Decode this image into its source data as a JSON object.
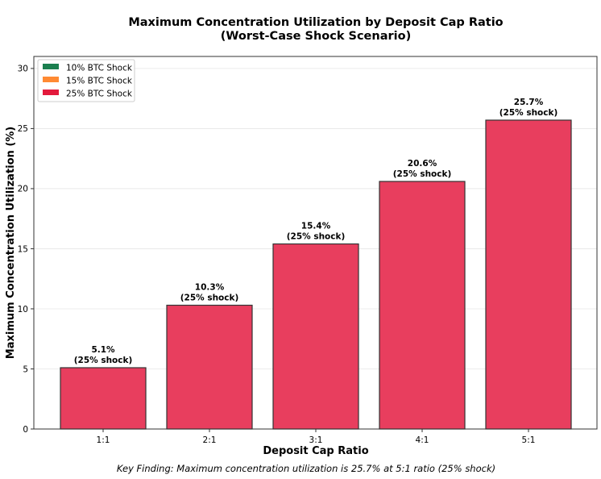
{
  "chart_data": {
    "type": "bar",
    "title": "Maximum Concentration Utilization by Deposit Cap Ratio",
    "subtitle": "(Worst-Case Shock Scenario)",
    "xlabel": "Deposit Cap Ratio",
    "ylabel": "Maximum Concentration Utilization (%)",
    "categories": [
      "1:1",
      "2:1",
      "3:1",
      "4:1",
      "5:1"
    ],
    "values": [
      5.1,
      10.3,
      15.4,
      20.6,
      25.7
    ],
    "value_labels": [
      "5.1%",
      "10.3%",
      "15.4%",
      "20.6%",
      "25.7%"
    ],
    "shock_labels": [
      "(25% shock)",
      "(25% shock)",
      "(25% shock)",
      "(25% shock)",
      "(25% shock)"
    ],
    "ylim": [
      0,
      31
    ],
    "yticks": [
      0,
      5,
      10,
      15,
      20,
      25,
      30
    ],
    "grid": "horizontal",
    "bar_color": "#e83e5e",
    "legend_placement": "top-left",
    "legend": [
      {
        "label": "10% BTC Shock",
        "color": "#1b7f4f"
      },
      {
        "label": "15% BTC Shock",
        "color": "#ff8a33"
      },
      {
        "label": "25% BTC Shock",
        "color": "#e31a3c"
      }
    ],
    "footnote": "Key Finding: Maximum concentration utilization is 25.7% at 5:1 ratio (25% shock)"
  }
}
